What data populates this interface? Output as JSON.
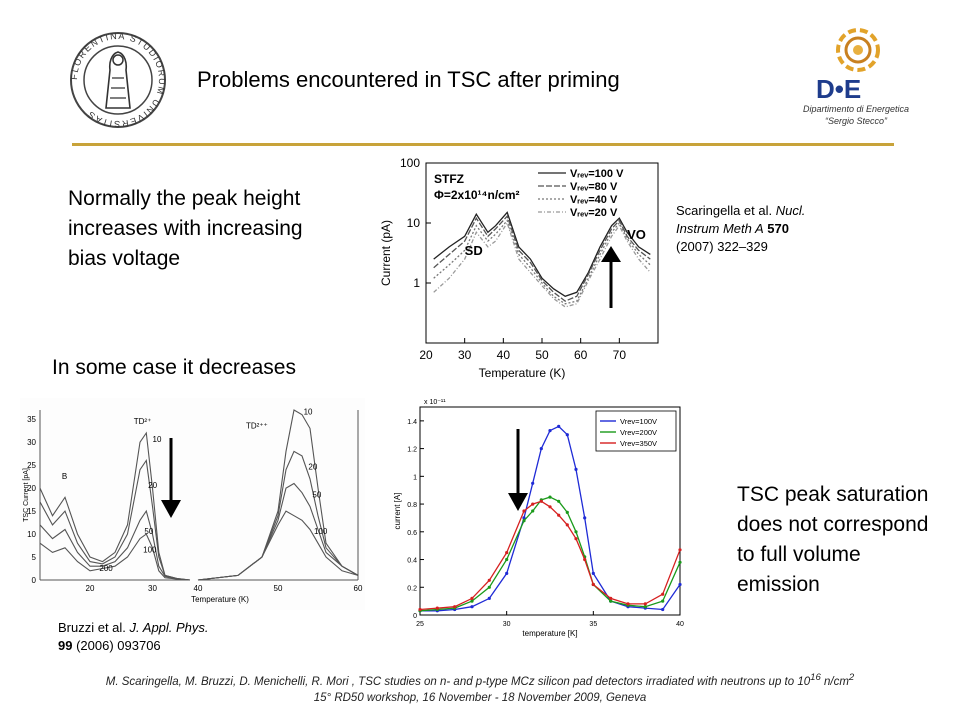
{
  "slide_title": "Problems encountered in TSC after  priming",
  "statement_normal": "Normally the peak height increases with increasing bias voltage",
  "statement_decrease": "In some case it decreases",
  "statement_saturation": "TSC peak saturation does not correspond to full volume emission",
  "logo_unifi": {
    "text": "FLORENTINA STUDIORUM UNIVERSITAS"
  },
  "logo_de": {
    "mark": "D•E",
    "line1": "Dipartimento di Energetica",
    "line2": "“Sergio Stecco”"
  },
  "ref1": {
    "authors": "Scaringella et al. ",
    "journal": "Nucl. Instrum Meth A",
    "volume": "570",
    "rest": "(2007) 322–329"
  },
  "ref2": {
    "authors": "Bruzzi et al. ",
    "journal": "J. Appl. Phys.",
    "volume": "99",
    "rest": "(2006) 093706"
  },
  "footer": {
    "line1_pre": "M. Scaringella, M. Bruzzi, D. Menichelli, R. Mori , TSC studies on n- and p-type MCz silicon pad detectors irradiated with neutrons up to 10",
    "line1_sup": "16",
    "line1_post": " n/cm",
    "line1_sup2": "2",
    "line2": "15° RD50 workshop, 16 November - 18 November 2009, Geneva"
  },
  "chart_data": [
    {
      "type": "line",
      "ylog": true,
      "xlabel": "Temperature (K)",
      "ylabel": "Current (pA)",
      "xlim": [
        20,
        80
      ],
      "ylim": [
        0.1,
        100
      ],
      "x_ticks": [
        "20",
        "30",
        "40",
        "50",
        "60",
        "70"
      ],
      "y_ticks": [
        "100",
        "10",
        "1"
      ],
      "annotations": [
        "STFZ",
        "Φ=2x10¹⁴n/cm²",
        "SD",
        "VO"
      ],
      "legend": [
        "Vᵣₑᵥ=100 V",
        "Vᵣₑᵥ=80 V",
        "Vᵣₑᵥ=40 V",
        "Vᵣₑᵥ=20 V"
      ],
      "x": [
        22,
        26,
        30,
        33,
        36,
        38,
        41,
        44,
        47,
        50,
        53,
        56,
        59,
        62,
        65,
        68,
        70,
        72,
        75,
        78
      ],
      "series": [
        {
          "values": [
            2.5,
            4,
            6,
            14,
            7,
            9,
            15,
            4,
            2.5,
            1.2,
            0.8,
            0.6,
            0.7,
            1.5,
            4,
            9,
            12,
            7,
            4,
            3
          ]
        },
        {
          "values": [
            1.8,
            3,
            5,
            12,
            6,
            8,
            13,
            3.5,
            2.2,
            1.1,
            0.7,
            0.5,
            0.6,
            1.4,
            3.5,
            8,
            11,
            6,
            3.5,
            2.5
          ]
        },
        {
          "values": [
            1.2,
            2,
            3.5,
            9,
            5,
            6.5,
            11,
            3,
            1.8,
            1,
            0.6,
            0.45,
            0.5,
            1.2,
            3,
            7,
            10,
            5.5,
            3,
            2
          ]
        },
        {
          "values": [
            0.7,
            1.2,
            2.5,
            7,
            4,
            5,
            10,
            2.5,
            1.5,
            0.9,
            0.55,
            0.4,
            0.45,
            1.1,
            2.5,
            6,
            9,
            5,
            2.5,
            1.5
          ]
        }
      ]
    },
    {
      "type": "line",
      "ylabel": "TSC Current [pA]",
      "xlabel": "Temperature (K)",
      "x_ticks_left": [
        "20",
        "30"
      ],
      "x_ticks_right": [
        "40",
        "50",
        "60"
      ],
      "y_ticks": [
        "35",
        "30",
        "25",
        "20",
        "15",
        "10",
        "5",
        "0"
      ],
      "annotations": [
        "B",
        "TD²⁺",
        "TD²⁺⁺",
        "10",
        "20",
        "50",
        "100",
        "200",
        "10",
        "20",
        "50",
        "100"
      ],
      "x": [
        12,
        14,
        16,
        18,
        20,
        22,
        24,
        26,
        28,
        29,
        30,
        31,
        32,
        34,
        36
      ],
      "series_left": [
        {
          "name": "10",
          "values": [
            20,
            14,
            18,
            10,
            5,
            4,
            6,
            12,
            30,
            32,
            20,
            6,
            1,
            0.3,
            0
          ]
        },
        {
          "name": "20",
          "values": [
            17,
            12,
            15,
            8,
            4,
            3.5,
            5,
            10,
            24,
            26,
            16,
            5,
            1,
            0.3,
            0
          ]
        },
        {
          "name": "50",
          "values": [
            12,
            9,
            11,
            6,
            3,
            3,
            4,
            7,
            13,
            15,
            10,
            3,
            0.8,
            0.2,
            0
          ]
        },
        {
          "name": "100",
          "values": [
            8,
            6,
            7,
            4,
            2,
            2.5,
            3,
            5,
            9,
            10,
            7,
            2,
            0.5,
            0.2,
            0
          ]
        }
      ],
      "x_right": [
        40,
        45,
        48,
        50,
        51,
        52,
        53,
        54,
        55,
        56,
        58,
        60
      ],
      "series_right": [
        {
          "name": "10",
          "values": [
            0,
            1,
            5,
            15,
            28,
            37,
            36,
            33,
            20,
            8,
            3,
            1
          ]
        },
        {
          "name": "20",
          "values": [
            0,
            1,
            5,
            14,
            24,
            28,
            27,
            22,
            14,
            7,
            3,
            1
          ]
        },
        {
          "name": "50",
          "values": [
            0,
            1,
            5,
            13,
            20,
            21,
            19,
            16,
            11,
            6,
            3,
            1
          ]
        },
        {
          "name": "100",
          "values": [
            0,
            1,
            5,
            12,
            15,
            14,
            13,
            11,
            8,
            5,
            2,
            1
          ]
        }
      ]
    },
    {
      "type": "line",
      "xlabel": "temperature [K]",
      "ylabel": "current [A]",
      "exponent": "x 10⁻¹¹",
      "xlim": [
        25,
        40
      ],
      "ylim": [
        0,
        1.5
      ],
      "x_ticks": [
        "25",
        "30",
        "35",
        "40"
      ],
      "y_ticks": [
        "0",
        "0.2",
        "0.4",
        "0.6",
        "0.8",
        "1",
        "1.2",
        "1.4"
      ],
      "legend_position": "top-right",
      "x": [
        25,
        26,
        27,
        28,
        29,
        30,
        31,
        31.5,
        32,
        32.5,
        33,
        33.5,
        34,
        34.5,
        35,
        36,
        37,
        38,
        39,
        40
      ],
      "series": [
        {
          "name": "Vrev=100V",
          "color": "#1f2bd6",
          "values": [
            0.03,
            0.03,
            0.04,
            0.06,
            0.12,
            0.3,
            0.7,
            0.95,
            1.2,
            1.33,
            1.36,
            1.3,
            1.05,
            0.7,
            0.3,
            0.1,
            0.06,
            0.05,
            0.04,
            0.22
          ]
        },
        {
          "name": "Vrev=200V",
          "color": "#1a9a1a",
          "values": [
            0.03,
            0.04,
            0.05,
            0.1,
            0.2,
            0.4,
            0.68,
            0.75,
            0.83,
            0.85,
            0.82,
            0.74,
            0.6,
            0.42,
            0.22,
            0.1,
            0.07,
            0.06,
            0.1,
            0.38
          ]
        },
        {
          "name": "Vrev=350V",
          "color": "#d62020",
          "values": [
            0.04,
            0.05,
            0.06,
            0.12,
            0.25,
            0.45,
            0.75,
            0.8,
            0.82,
            0.78,
            0.72,
            0.65,
            0.55,
            0.4,
            0.22,
            0.12,
            0.08,
            0.08,
            0.15,
            0.47
          ]
        }
      ]
    }
  ]
}
